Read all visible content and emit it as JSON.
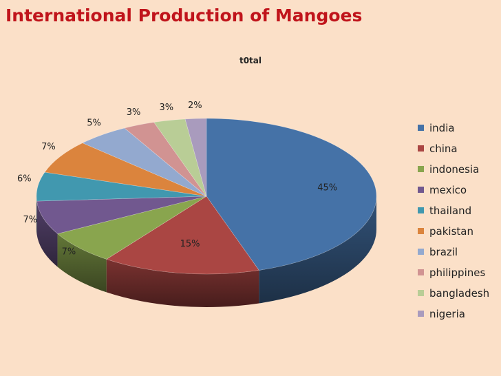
{
  "slide": {
    "title": "International Production of Mangoes"
  },
  "chart_data": {
    "type": "pie",
    "subtitle": "t0tal",
    "categories": [
      "india",
      "china",
      "indonesia",
      "mexico",
      "thailand",
      "pakistan",
      "brazil",
      "philippines",
      "bangladesh",
      "nigeria"
    ],
    "values": [
      45,
      15,
      7,
      7,
      6,
      7,
      5,
      3,
      3,
      2
    ],
    "data_labels": [
      "45%",
      "15%",
      "7%",
      "7%",
      "6%",
      "7%",
      "5%",
      "3%",
      "3%",
      "2%"
    ],
    "colors": [
      "#4572a7",
      "#aa4643",
      "#89a54e",
      "#71588f",
      "#4198af",
      "#db843d",
      "#93a9cf",
      "#d19392",
      "#b9cd96",
      "#a99bbd"
    ],
    "legend_position": "right",
    "style": "3d"
  }
}
